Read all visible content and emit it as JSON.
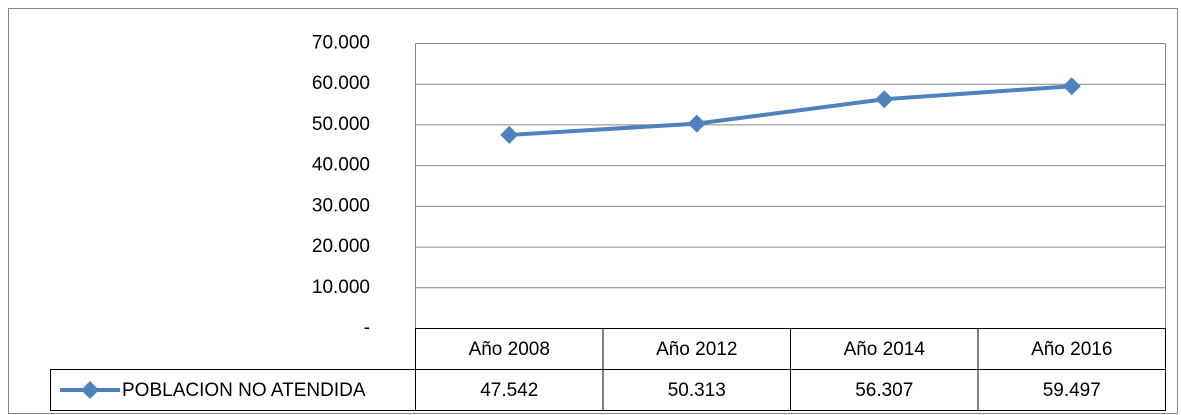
{
  "chart_data": {
    "type": "line",
    "categories": [
      "Año 2008",
      "Año 2012",
      "Año 2014",
      "Año 2016"
    ],
    "series": [
      {
        "name": "POBLACION NO ATENDIDA",
        "color": "#4f81bd",
        "values": [
          47542,
          50313,
          56307,
          59497
        ],
        "value_labels": [
          "47.542",
          "50.313",
          "56.307",
          "59.497"
        ]
      }
    ],
    "ylim": [
      0,
      70000
    ],
    "yticks": [
      {
        "value": 0,
        "label": "-"
      },
      {
        "value": 10000,
        "label": "10.000"
      },
      {
        "value": 20000,
        "label": "20.000"
      },
      {
        "value": 30000,
        "label": "30.000"
      },
      {
        "value": 40000,
        "label": "40.000"
      },
      {
        "value": 50000,
        "label": "50.000"
      },
      {
        "value": 60000,
        "label": "60.000"
      },
      {
        "value": 70000,
        "label": "70.000"
      }
    ],
    "grid": true
  }
}
